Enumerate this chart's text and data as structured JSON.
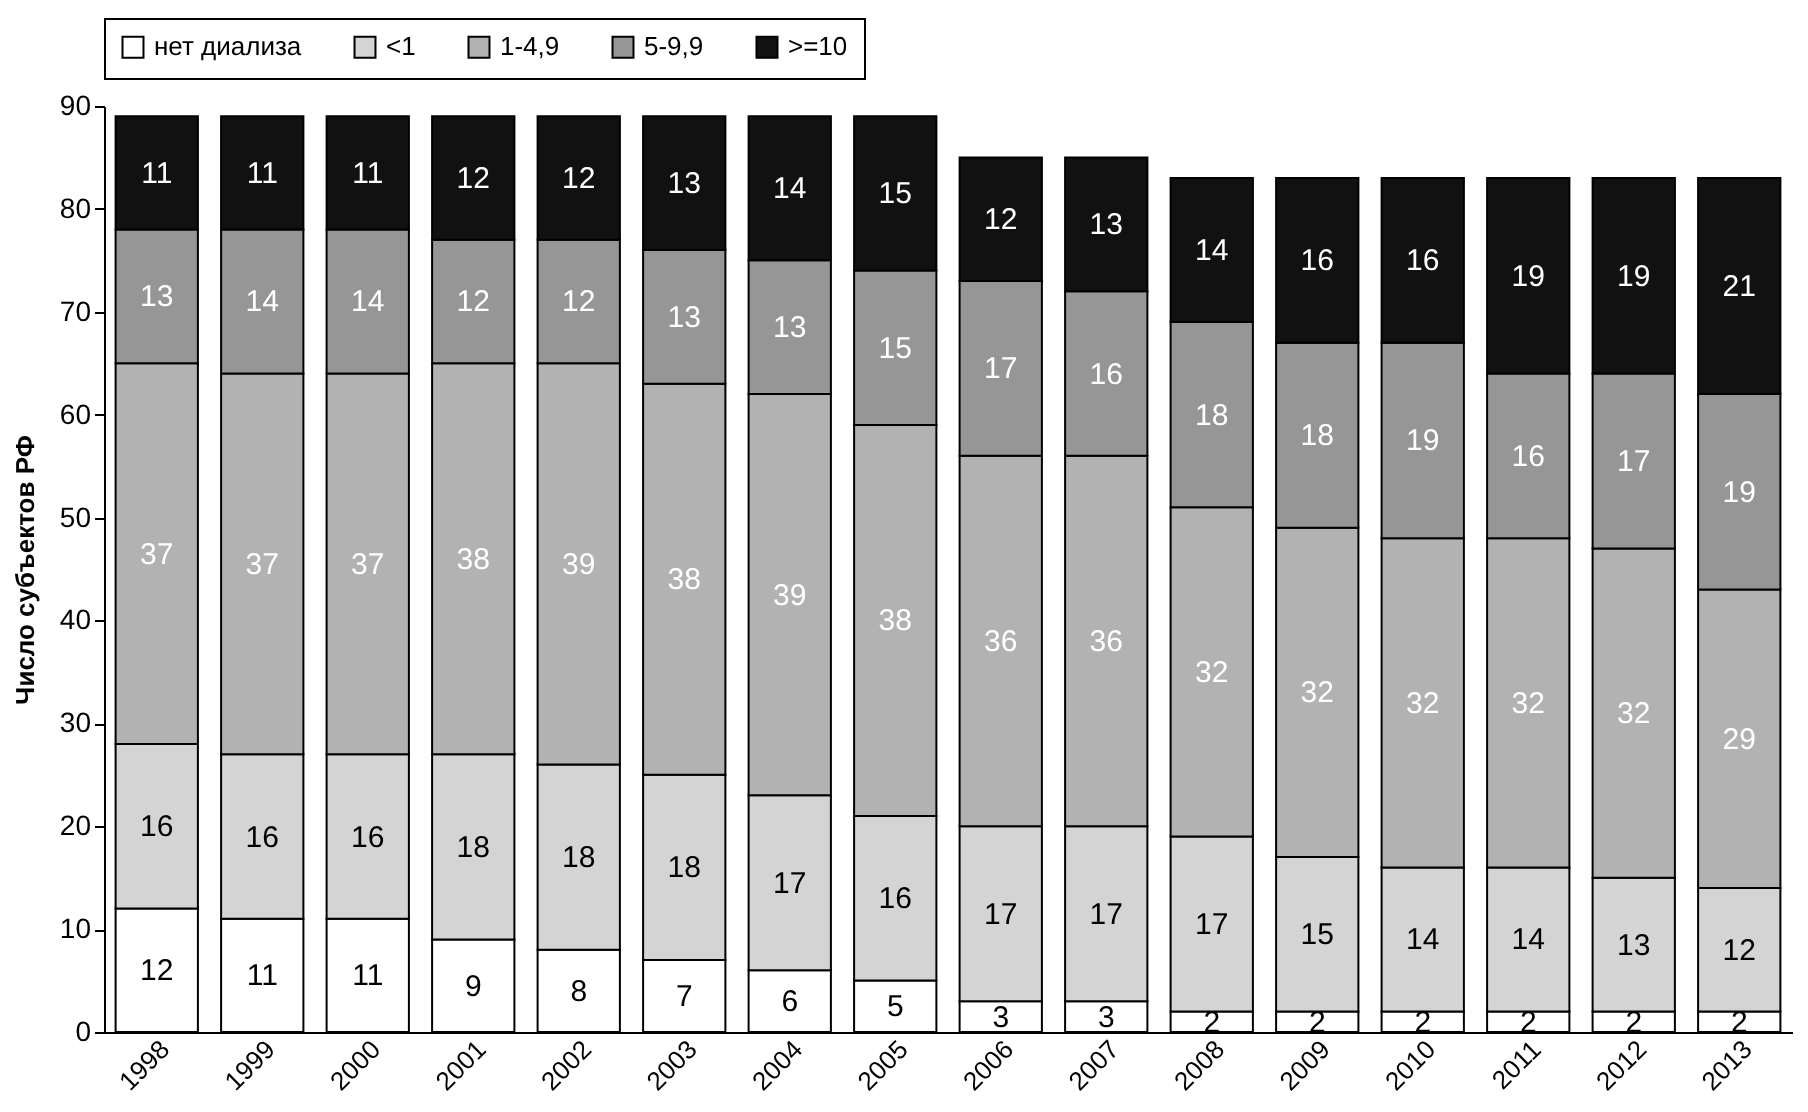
{
  "chart_data": {
    "type": "bar",
    "stacked": true,
    "ylabel": "Число субъектов РФ",
    "categories": [
      "1998",
      "1999",
      "2000",
      "2001",
      "2002",
      "2003",
      "2004",
      "2005",
      "2006",
      "2007",
      "2008",
      "2009",
      "2010",
      "2011",
      "2012",
      "2013"
    ],
    "series": [
      {
        "name": "нет диализа",
        "color": "#ffffff",
        "values": [
          12,
          11,
          11,
          9,
          8,
          7,
          6,
          5,
          3,
          3,
          2,
          2,
          2,
          2,
          2,
          2
        ]
      },
      {
        "name": "<1",
        "color": "#d4d4d4",
        "values": [
          16,
          16,
          16,
          18,
          18,
          18,
          17,
          16,
          17,
          17,
          17,
          15,
          14,
          14,
          13,
          12
        ]
      },
      {
        "name": "1-4,9",
        "color": "#b2b2b2",
        "values": [
          37,
          37,
          37,
          38,
          39,
          38,
          39,
          38,
          36,
          36,
          32,
          32,
          32,
          32,
          32,
          29
        ]
      },
      {
        "name": "5-9,9",
        "color": "#969696",
        "values": [
          13,
          14,
          14,
          12,
          12,
          13,
          13,
          15,
          17,
          16,
          18,
          18,
          19,
          16,
          17,
          19
        ]
      },
      {
        "name": ">=10",
        "color": "#111111",
        "values": [
          11,
          11,
          11,
          12,
          12,
          13,
          14,
          15,
          12,
          13,
          14,
          16,
          16,
          19,
          19,
          21
        ]
      }
    ],
    "ylim": [
      0,
      90
    ],
    "yticks": [
      0,
      10,
      20,
      30,
      40,
      50,
      60,
      70,
      80,
      90
    ],
    "grid": false,
    "legend": "top",
    "data_labels": true
  }
}
